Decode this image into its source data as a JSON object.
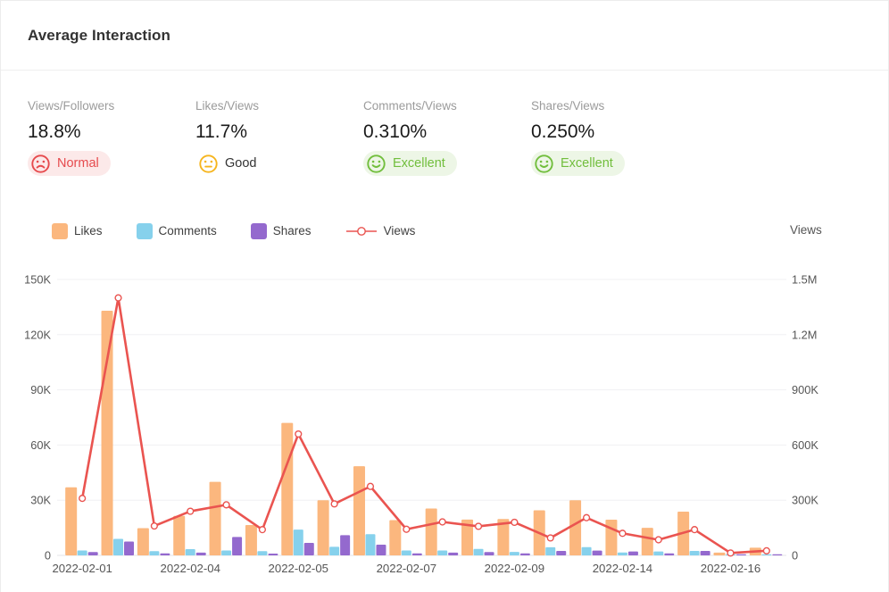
{
  "panel": {
    "title": "Average Interaction"
  },
  "stats": [
    {
      "label": "Views/Followers",
      "value": "18.8%",
      "status": "Normal",
      "face": "sad",
      "icon": "sad-face-icon",
      "icon_color": "#E64A4D",
      "status_color": "#E64A4D",
      "badge_bg": "#FCE9E9"
    },
    {
      "label": "Likes/Views",
      "value": "11.7%",
      "status": "Good",
      "face": "neutral",
      "icon": "neutral-face-icon",
      "icon_color": "#F6B51E",
      "status_color": "#333333",
      "badge_bg": "transparent"
    },
    {
      "label": "Comments/Views",
      "value": "0.310%",
      "status": "Excellent",
      "face": "smile",
      "icon": "smiley-face-icon",
      "icon_color": "#71BE3C",
      "status_color": "#71BE3C",
      "badge_bg": "#EDF6E6"
    },
    {
      "label": "Shares/Views",
      "value": "0.250%",
      "status": "Excellent",
      "face": "smile",
      "icon": "smiley-face-icon",
      "icon_color": "#71BE3C",
      "status_color": "#71BE3C",
      "badge_bg": "#EDF6E6"
    }
  ],
  "legend": [
    {
      "label": "Likes",
      "type": "bar",
      "color": "#FBB77E"
    },
    {
      "label": "Comments",
      "type": "bar",
      "color": "#86D1EC"
    },
    {
      "label": "Shares",
      "type": "bar",
      "color": "#9469CE"
    },
    {
      "label": "Views",
      "type": "line",
      "color": "#EA5450"
    }
  ],
  "chart_data": {
    "type": "bar+line",
    "x_tick_labels": [
      {
        "index": 0,
        "label": "2022-02-01"
      },
      {
        "index": 3,
        "label": "2022-02-04"
      },
      {
        "index": 6,
        "label": "2022-02-05"
      },
      {
        "index": 9,
        "label": "2022-02-07"
      },
      {
        "index": 12,
        "label": "2022-02-09"
      },
      {
        "index": 15,
        "label": "2022-02-14"
      },
      {
        "index": 18,
        "label": "2022-02-16"
      }
    ],
    "series": [
      {
        "name": "Likes",
        "type": "bar",
        "axis": "left",
        "color": "#FBB77E",
        "values": [
          37000,
          133000,
          14800,
          21500,
          40000,
          16500,
          72000,
          30000,
          48500,
          19200,
          25500,
          19500,
          19800,
          24500,
          30000,
          19400,
          15000,
          23800,
          1500,
          4200
        ]
      },
      {
        "name": "Comments",
        "type": "bar",
        "axis": "left",
        "color": "#86D1EC",
        "values": [
          2700,
          9000,
          2300,
          3400,
          2700,
          2300,
          14000,
          4700,
          11500,
          2700,
          2700,
          3500,
          1900,
          4400,
          4500,
          1600,
          2100,
          2400,
          500,
          500
        ]
      },
      {
        "name": "Shares",
        "type": "bar",
        "axis": "left",
        "color": "#9469CE",
        "values": [
          1800,
          7500,
          1100,
          1500,
          10000,
          1000,
          6800,
          11000,
          5800,
          1100,
          1500,
          1800,
          1100,
          2400,
          2600,
          2100,
          1100,
          2400,
          300,
          400
        ]
      },
      {
        "name": "Views",
        "type": "line",
        "axis": "right",
        "color": "#EA5450",
        "values": [
          310000,
          1400000,
          160000,
          240000,
          275000,
          140000,
          660000,
          280000,
          375000,
          142000,
          182000,
          158000,
          180000,
          95000,
          205000,
          120000,
          85000,
          140000,
          13000,
          25000
        ]
      }
    ],
    "left_axis": {
      "ticks": [
        "0",
        "30K",
        "60K",
        "90K",
        "120K",
        "150K"
      ],
      "max": 150000
    },
    "right_axis": {
      "title": "Views",
      "ticks": [
        "0",
        "300K",
        "600K",
        "900K",
        "1.2M",
        "1.5M"
      ],
      "max": 1500000
    },
    "grid": true,
    "legend_position": "top-left"
  }
}
